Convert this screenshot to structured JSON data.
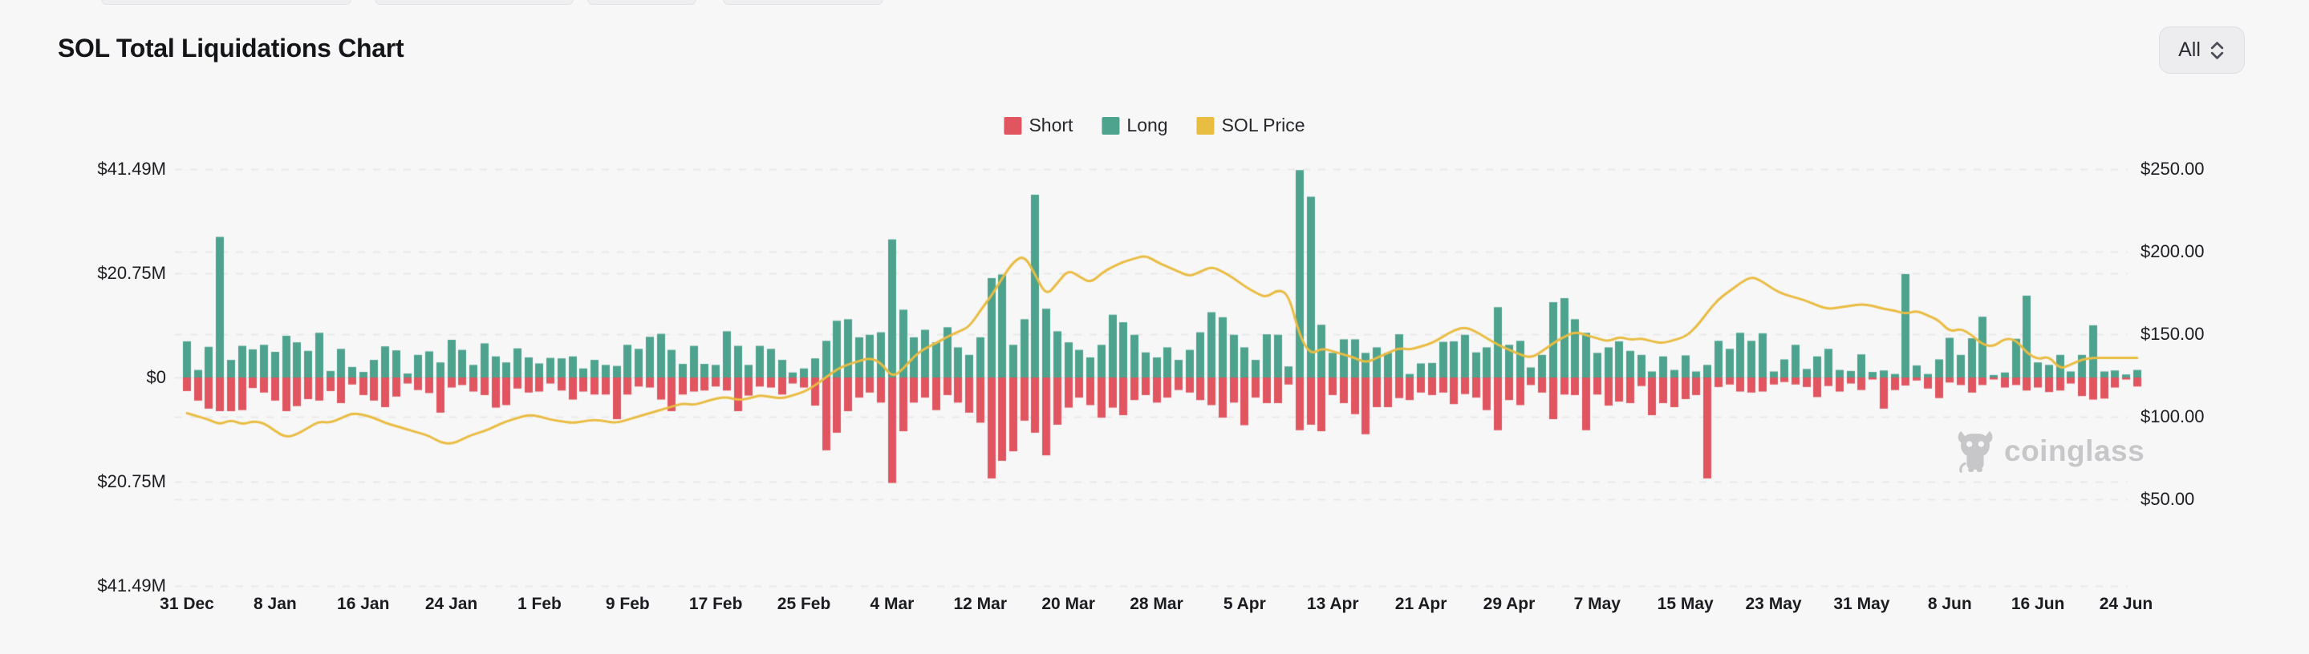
{
  "page": {
    "background": "#f7f7f8"
  },
  "header": {
    "title": "SOL Total Liquidations Chart",
    "range_selector": {
      "value": "All"
    }
  },
  "watermark": {
    "text": "coinglass",
    "icon": "coinglass-bull-logo"
  },
  "chart_data": {
    "type": "bar",
    "title": "SOL Total Liquidations Chart",
    "grid": true,
    "legend_position": "top",
    "legend": [
      {
        "label": "Short",
        "color": "#e0555f"
      },
      {
        "label": "Long",
        "color": "#4da38e"
      },
      {
        "label": "SOL Price",
        "color": "#e9bc42"
      }
    ],
    "left_axis": {
      "unit": "USD liquidations",
      "tick_labels": [
        "$41.49M",
        "$20.75M",
        "$0",
        "$20.75M",
        "$41.49M"
      ],
      "range_musd": [
        -41.49,
        41.49
      ]
    },
    "right_axis": {
      "unit": "SOL price USD",
      "tick_labels": [
        "$250.00",
        "$200.00",
        "$150.00",
        "$100.00",
        "$50.00"
      ],
      "range_usd": [
        50,
        250
      ]
    },
    "x_axis": {
      "tick_labels": [
        "31 Dec",
        "8 Jan",
        "16 Jan",
        "24 Jan",
        "1 Feb",
        "9 Feb",
        "17 Feb",
        "25 Feb",
        "4 Mar",
        "12 Mar",
        "20 Mar",
        "28 Mar",
        "5 Apr",
        "13 Apr",
        "21 Apr",
        "29 Apr",
        "7 May",
        "15 May",
        "23 May",
        "31 May",
        "8 Jun",
        "16 Jun",
        "24 Jun"
      ],
      "tick_every_days": 8,
      "days_total": 178
    },
    "series": [
      {
        "name": "Long",
        "type": "bar",
        "direction": "up",
        "color": "#4da38e",
        "unit": "$M",
        "values": [
          7.2,
          1.5,
          6.1,
          28,
          3.5,
          6.3,
          5.6,
          6.5,
          5.1,
          8.3,
          7,
          5.3,
          8.9,
          1.3,
          5.7,
          2.1,
          1.1,
          3.5,
          6.2,
          5.4,
          0.8,
          4.5,
          5.2,
          3,
          7.5,
          5.5,
          2.5,
          6.8,
          4.2,
          3,
          5.8,
          4,
          2.8,
          3.9,
          3.8,
          4.2,
          1.8,
          3.5,
          2.5,
          2.3,
          6.5,
          5.7,
          8.1,
          8.7,
          5.5,
          2.7,
          6.3,
          2.7,
          2.5,
          9.2,
          6.3,
          2.5,
          6.3,
          5.7,
          3.5,
          1,
          1.8,
          3.8,
          7.3,
          11.3,
          11.6,
          8,
          8.5,
          9,
          27.5,
          13.5,
          8,
          9.5,
          7,
          10,
          6,
          4.5,
          8,
          19.8,
          20.5,
          6.5,
          11.6,
          36.4,
          13.7,
          9.2,
          7,
          5.5,
          4,
          6.5,
          12.5,
          11,
          8.5,
          5,
          4,
          6,
          3.5,
          5.5,
          9,
          13,
          12,
          8.5,
          6,
          3.5,
          8.6,
          8.5,
          2.2,
          41.3,
          36,
          10.5,
          4.9,
          7.6,
          7.6,
          4.9,
          6,
          4.9,
          8.6,
          0.7,
          2.8,
          2.9,
          7.1,
          7.2,
          8.5,
          5,
          6,
          14,
          6.5,
          7.3,
          2,
          4.5,
          15,
          15.8,
          11.6,
          8.9,
          4.9,
          6,
          7.2,
          5.3,
          4.5,
          1.2,
          4.2,
          1.5,
          4.4,
          1.2,
          2.5,
          7.3,
          5.7,
          8.9,
          7.3,
          8.8,
          1.2,
          3.6,
          6.5,
          1.7,
          4.2,
          5.7,
          1.5,
          1.3,
          4.6,
          1.1,
          1.4,
          0.7,
          20.6,
          2.4,
          0.7,
          3.6,
          7.9,
          4.5,
          7.8,
          12.1,
          0.5,
          1,
          7.7,
          16.3,
          3,
          2.5,
          4.5,
          1.2,
          4.5,
          10.4,
          1.2,
          1.4,
          0.6,
          1.5
        ]
      },
      {
        "name": "Short",
        "type": "bar",
        "direction": "down",
        "color": "#e0555f",
        "unit": "$M",
        "values": [
          2.7,
          4.6,
          6.2,
          6.7,
          6.7,
          6.5,
          2.1,
          3,
          4.6,
          6.7,
          5.7,
          4.3,
          4.6,
          2.7,
          5.1,
          1.4,
          3.5,
          4.6,
          5.9,
          3.8,
          1.2,
          2.5,
          3.1,
          7,
          2,
          1.5,
          2.8,
          3.5,
          6,
          5.5,
          2.2,
          3,
          2.8,
          1.2,
          2.6,
          4.4,
          2.8,
          3.4,
          3.4,
          8.3,
          3.4,
          1.8,
          2,
          4.4,
          6.7,
          3.4,
          2.8,
          2.6,
          1.8,
          2.6,
          6.7,
          3.6,
          1.8,
          2,
          3.4,
          1.2,
          2,
          5.6,
          14.5,
          11,
          6.7,
          4,
          3,
          5,
          21,
          10.7,
          5,
          4,
          6.5,
          3.5,
          5,
          7,
          9,
          20.1,
          16.6,
          14.7,
          8.6,
          11,
          15.5,
          9.4,
          6,
          4,
          5.5,
          8,
          6,
          7.5,
          4.5,
          3.5,
          5,
          4,
          2.5,
          3,
          4.5,
          5.5,
          8,
          5,
          9.5,
          4,
          5.1,
          5.1,
          1.4,
          10.5,
          9.4,
          10.7,
          3.5,
          5.1,
          7.3,
          11.3,
          5.9,
          5.9,
          4.1,
          4.5,
          3,
          3.5,
          3,
          5.3,
          3.3,
          4,
          6.5,
          10.5,
          4.5,
          5.5,
          1.5,
          3,
          8.3,
          3.4,
          3.5,
          10.5,
          3.4,
          5.6,
          4.8,
          5.1,
          1.7,
          7.5,
          5.1,
          5.9,
          4.3,
          3.5,
          20.1,
          1.9,
          1.4,
          2.8,
          3,
          2.8,
          1.4,
          0.9,
          1.4,
          1.9,
          3.9,
          1.7,
          2.8,
          1.2,
          2.5,
          0.4,
          6.2,
          2.5,
          1.6,
          0.6,
          2.2,
          4.1,
          1,
          1.5,
          3,
          1.5,
          0.4,
          2,
          1.5,
          2.6,
          2,
          2.9,
          2.6,
          1.2,
          3.7,
          4.4,
          4.2,
          2,
          0.4,
          1.8
        ]
      },
      {
        "name": "SOL Price",
        "type": "line",
        "color": "#e9bc42",
        "unit": "$",
        "values": [
          100,
          98,
          96,
          93,
          96,
          93,
          95,
          94,
          89,
          85,
          87,
          91,
          95,
          94,
          97,
          100,
          99,
          97,
          94,
          92,
          90,
          88,
          86,
          82,
          81,
          84,
          87,
          89,
          92,
          95,
          97,
          99,
          98,
          96,
          95,
          94,
          95,
          96,
          95,
          94,
          96,
          98,
          100,
          102,
          104,
          106,
          105,
          107,
          109,
          110,
          108,
          109,
          111,
          110,
          109,
          111,
          113,
          117,
          122,
          127,
          130,
          132,
          134,
          131,
          122,
          127,
          135,
          140,
          143,
          147,
          150,
          153,
          163,
          172,
          183,
          193,
          197,
          185,
          172,
          180,
          188,
          184,
          180,
          186,
          190,
          193,
          195,
          197,
          193,
          190,
          187,
          184,
          187,
          190,
          187,
          183,
          178,
          174,
          171,
          176,
          173,
          147,
          136,
          140,
          138,
          136,
          134,
          131,
          134,
          137,
          140,
          139,
          141,
          143,
          147,
          151,
          153,
          150,
          146,
          142,
          139,
          136,
          134,
          138,
          143,
          147,
          150,
          148,
          146,
          144,
          147,
          145,
          146,
          144,
          143,
          145,
          147,
          153,
          162,
          170,
          175,
          180,
          184,
          181,
          176,
          173,
          171,
          169,
          166,
          164,
          165,
          166,
          167,
          166,
          164,
          163,
          161,
          163,
          160,
          157,
          150,
          152,
          148,
          142,
          141,
          146,
          145,
          137,
          133,
          135,
          127,
          130,
          133,
          134,
          134,
          134,
          134,
          134
        ]
      }
    ]
  }
}
